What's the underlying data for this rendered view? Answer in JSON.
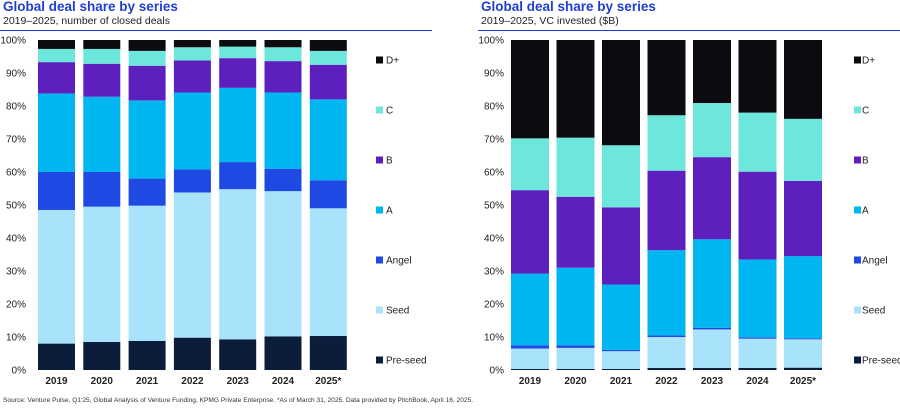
{
  "chart_data": [
    {
      "type": "bar",
      "stacked": true,
      "title": "Global deal share by series",
      "subtitle": "2019–2025, number of closed deals",
      "categories": [
        "2019",
        "2020",
        "2021",
        "2022",
        "2023",
        "2024",
        "2025*"
      ],
      "ylim": [
        0,
        100
      ],
      "yticks": [
        "0%",
        "10%",
        "20%",
        "30%",
        "40%",
        "50%",
        "60%",
        "70%",
        "80%",
        "90%",
        "100%"
      ],
      "legend_position": "right",
      "series": [
        {
          "name": "Pre-seed",
          "color": "#0c1d3c",
          "values": [
            8,
            8.5,
            8.8,
            9.8,
            9.3,
            10.2,
            10.3
          ]
        },
        {
          "name": "Seed",
          "color": "#a8e2fb",
          "values": [
            40.5,
            41,
            41,
            44,
            45.5,
            44,
            38.7
          ]
        },
        {
          "name": "Angel",
          "color": "#1e49e2",
          "values": [
            11.5,
            10.5,
            8.2,
            7,
            8.2,
            6.8,
            8.5
          ]
        },
        {
          "name": "A",
          "color": "#00b6f0",
          "values": [
            23.8,
            22.8,
            23.7,
            23.3,
            22.5,
            23.1,
            24.5
          ]
        },
        {
          "name": "B",
          "color": "#5e1fbf",
          "values": [
            9.5,
            10,
            10.5,
            9.7,
            9,
            9.5,
            10.5
          ]
        },
        {
          "name": "C",
          "color": "#6de7db",
          "values": [
            4,
            4.5,
            4.5,
            4,
            3.5,
            4.2,
            4.2
          ]
        },
        {
          "name": "D+",
          "color": "#0b0b10",
          "values": [
            2.7,
            2.7,
            3.3,
            2.2,
            2,
            2.2,
            3.3
          ]
        }
      ]
    },
    {
      "type": "bar",
      "stacked": true,
      "title": "Global deal share by series",
      "subtitle": "2019–2025, VC invested ($B)",
      "categories": [
        "2019",
        "2020",
        "2021",
        "2022",
        "2023",
        "2024",
        "2025*"
      ],
      "ylim": [
        0,
        100
      ],
      "yticks": [
        "0%",
        "10%",
        "20%",
        "30%",
        "40%",
        "50%",
        "60%",
        "70%",
        "80%",
        "90%",
        "100%"
      ],
      "legend_position": "right",
      "series": [
        {
          "name": "Pre-seed",
          "color": "#0c1d3c",
          "values": [
            0.3,
            0.3,
            0.3,
            0.6,
            0.6,
            0.6,
            0.7
          ]
        },
        {
          "name": "Seed",
          "color": "#a8e2fb",
          "values": [
            6.2,
            6.4,
            5.4,
            9.4,
            11.7,
            8.9,
            8.6
          ]
        },
        {
          "name": "Angel",
          "color": "#1e49e2",
          "values": [
            1,
            0.8,
            0.4,
            0.5,
            0.5,
            0.4,
            0.3
          ]
        },
        {
          "name": "A",
          "color": "#00b6f0",
          "values": [
            21.7,
            23.5,
            19.8,
            25.8,
            26.8,
            23.6,
            24.9
          ]
        },
        {
          "name": "B",
          "color": "#5e1fbf",
          "values": [
            25.3,
            21.5,
            23.4,
            24.1,
            24.9,
            26.6,
            22.8
          ]
        },
        {
          "name": "C",
          "color": "#6de7db",
          "values": [
            15.7,
            17.9,
            18.8,
            16.8,
            16.4,
            17.9,
            18.8
          ]
        },
        {
          "name": "D+",
          "color": "#0b0b10",
          "values": [
            29.8,
            29.6,
            31.9,
            22.8,
            19.1,
            22,
            23.9
          ]
        }
      ]
    }
  ],
  "footer": {
    "source": "Source: Venture Pulse, Q1'25, Global Analysis of Venture Funding, KPMG Private Enterprise. *As of March 31, 2025. Data provided by PitchBook, April 16, 2025."
  }
}
